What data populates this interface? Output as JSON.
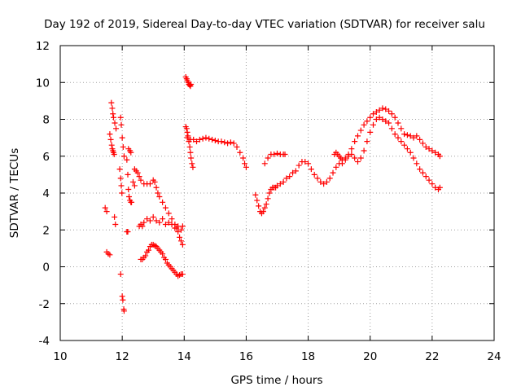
{
  "chart_data": {
    "type": "scatter",
    "title": "Day 192 of 2019, Sidereal Day-to-day VTEC variation (SDTVAR) for receiver salu",
    "xlabel": "GPS time / hours",
    "ylabel": "SDTVAR / TECUs",
    "xlim": [
      10,
      24
    ],
    "ylim": [
      -4,
      12
    ],
    "x_ticks": [
      10,
      12,
      14,
      16,
      18,
      20,
      22,
      24
    ],
    "y_ticks": [
      -4,
      -2,
      0,
      2,
      4,
      6,
      8,
      10,
      12
    ],
    "x_tick_labels": [
      "10",
      "12",
      "14",
      "16",
      "18",
      "20",
      "22",
      "24"
    ],
    "y_tick_labels": [
      "-4",
      "-2",
      "0",
      "2",
      "4",
      "6",
      "8",
      "10",
      "12"
    ],
    "grid": true,
    "marker": "+",
    "color": "#ff0000",
    "series": [
      {
        "name": "s1",
        "x": [
          11.45,
          11.5
        ],
        "y": [
          3.2,
          3.0
        ]
      },
      {
        "name": "s2",
        "x": [
          11.5,
          11.55,
          11.6
        ],
        "y": [
          0.8,
          0.7,
          0.65
        ]
      },
      {
        "name": "s3",
        "x": [
          11.6,
          11.63,
          11.66,
          11.68,
          11.7,
          11.72,
          11.74
        ],
        "y": [
          7.2,
          6.9,
          6.6,
          6.4,
          6.3,
          6.2,
          6.1
        ]
      },
      {
        "name": "s4",
        "x": [
          11.65,
          11.68,
          11.7,
          11.72,
          11.76,
          11.8
        ],
        "y": [
          8.9,
          8.6,
          8.3,
          8.1,
          7.8,
          7.5
        ]
      },
      {
        "name": "s5",
        "x": [
          11.75,
          11.78
        ],
        "y": [
          2.7,
          2.3
        ]
      },
      {
        "name": "s6",
        "x": [
          11.95,
          11.97,
          12.0,
          12.03,
          12.06
        ],
        "y": [
          8.1,
          7.7,
          7.0,
          6.5,
          6.0
        ]
      },
      {
        "name": "s7",
        "x": [
          11.92,
          11.95,
          11.97,
          11.99
        ],
        "y": [
          5.3,
          4.8,
          4.4,
          4.0
        ]
      },
      {
        "name": "s8",
        "x": [
          11.95,
          12.0,
          12.02,
          12.05,
          12.06
        ],
        "y": [
          -0.4,
          -1.6,
          -1.8,
          -2.3,
          -2.4
        ]
      },
      {
        "name": "s9",
        "x": [
          12.15,
          12.18
        ],
        "y": [
          1.9,
          1.9
        ]
      },
      {
        "name": "s10",
        "x": [
          12.2,
          12.25,
          12.28
        ],
        "y": [
          6.4,
          6.3,
          6.2
        ]
      },
      {
        "name": "s11",
        "x": [
          12.15,
          12.18,
          12.2,
          12.22,
          12.25,
          12.28,
          12.3
        ],
        "y": [
          5.8,
          5.0,
          4.2,
          3.8,
          3.6,
          3.5,
          3.5
        ]
      },
      {
        "name": "s12",
        "x": [
          12.4,
          12.45,
          12.5
        ],
        "y": [
          5.3,
          5.2,
          5.1
        ]
      },
      {
        "name": "s13",
        "x": [
          12.35,
          12.4
        ],
        "y": [
          4.6,
          4.4
        ]
      },
      {
        "name": "s14",
        "x": [
          12.55,
          12.6,
          12.7,
          12.8,
          12.9,
          13.0,
          13.05,
          13.1,
          13.15,
          13.2,
          13.3,
          13.4,
          13.5,
          13.6,
          13.7,
          13.75,
          13.8,
          13.85,
          13.9,
          13.95
        ],
        "y": [
          4.9,
          4.7,
          4.5,
          4.5,
          4.5,
          4.7,
          4.6,
          4.3,
          4.0,
          3.8,
          3.5,
          3.2,
          2.9,
          2.6,
          2.3,
          2.1,
          1.9,
          1.6,
          1.4,
          1.2
        ]
      },
      {
        "name": "s15",
        "x": [
          12.55,
          12.6,
          12.65,
          12.7,
          12.8,
          12.9,
          13.0,
          13.1,
          13.2,
          13.3,
          13.4,
          13.5,
          13.6,
          13.7,
          13.8,
          13.9,
          13.95
        ],
        "y": [
          2.2,
          2.3,
          2.2,
          2.4,
          2.6,
          2.5,
          2.7,
          2.5,
          2.4,
          2.6,
          2.3,
          2.4,
          2.3,
          2.1,
          2.2,
          2.0,
          2.2
        ]
      },
      {
        "name": "s16",
        "x": [
          12.6,
          12.65,
          12.7,
          12.75,
          12.8,
          12.85,
          12.9,
          12.95,
          13.0,
          13.05,
          13.1,
          13.15,
          13.2,
          13.25,
          13.3,
          13.35,
          13.4,
          13.45,
          13.5,
          13.55,
          13.6,
          13.65,
          13.7,
          13.75,
          13.8,
          13.85,
          13.9,
          13.95
        ],
        "y": [
          0.4,
          0.4,
          0.5,
          0.6,
          0.8,
          0.9,
          1.1,
          1.2,
          1.2,
          1.15,
          1.1,
          1.0,
          0.9,
          0.8,
          0.7,
          0.5,
          0.4,
          0.2,
          0.1,
          0.0,
          -0.1,
          -0.2,
          -0.3,
          -0.4,
          -0.5,
          -0.45,
          -0.4,
          -0.4
        ]
      },
      {
        "name": "s17",
        "x": [
          14.05,
          14.08,
          14.1,
          14.13,
          14.15,
          14.18,
          14.2,
          14.22
        ],
        "y": [
          10.3,
          10.2,
          10.1,
          10.0,
          9.9,
          9.85,
          9.8,
          9.9
        ]
      },
      {
        "name": "s18",
        "x": [
          14.05,
          14.08,
          14.1,
          14.12,
          14.15,
          14.18,
          14.2,
          14.22,
          14.25,
          14.28
        ],
        "y": [
          7.6,
          7.5,
          7.3,
          7.1,
          6.8,
          6.5,
          6.2,
          5.9,
          5.6,
          5.4
        ]
      },
      {
        "name": "s19",
        "x": [
          14.1,
          14.2,
          14.3,
          14.4,
          14.5,
          14.6,
          14.7,
          14.8,
          14.9,
          15.0,
          15.1,
          15.2,
          15.3,
          15.4,
          15.5,
          15.6,
          15.7,
          15.8,
          15.9,
          15.95,
          16.0
        ],
        "y": [
          7.0,
          6.9,
          6.9,
          6.8,
          6.9,
          6.95,
          7.0,
          6.95,
          6.9,
          6.85,
          6.8,
          6.8,
          6.75,
          6.7,
          6.75,
          6.7,
          6.5,
          6.2,
          5.9,
          5.6,
          5.4
        ]
      },
      {
        "name": "s20",
        "x": [
          16.3,
          16.35,
          16.4,
          16.45,
          16.5,
          16.55,
          16.6,
          16.65,
          16.7,
          16.75,
          16.8,
          16.85,
          16.9,
          16.95,
          17.0,
          17.1,
          17.2,
          17.3,
          17.4,
          17.5,
          17.6,
          17.7,
          17.8,
          17.9,
          18.0,
          18.1,
          18.2,
          18.3,
          18.4,
          18.5,
          18.6,
          18.7,
          18.8,
          18.9,
          19.0,
          19.1,
          19.2,
          19.3,
          19.4,
          19.5,
          19.6,
          19.7,
          19.8,
          19.9,
          20.0,
          20.1,
          20.2,
          20.3,
          20.4,
          20.5,
          20.6,
          20.7,
          20.8,
          20.9,
          21.0,
          21.1,
          21.2,
          21.3,
          21.4,
          21.5,
          21.6,
          21.7,
          21.8,
          21.9,
          22.0,
          22.1,
          22.2,
          22.25
        ],
        "y": [
          3.9,
          3.6,
          3.3,
          3.0,
          2.9,
          3.0,
          3.2,
          3.4,
          3.7,
          4.0,
          4.2,
          4.3,
          4.3,
          4.3,
          4.4,
          4.5,
          4.6,
          4.8,
          4.9,
          5.1,
          5.2,
          5.5,
          5.7,
          5.7,
          5.6,
          5.3,
          5.0,
          4.8,
          4.6,
          4.5,
          4.6,
          4.8,
          5.1,
          5.4,
          5.6,
          5.8,
          5.9,
          6.0,
          6.1,
          5.9,
          5.7,
          5.9,
          6.3,
          6.8,
          7.3,
          7.7,
          8.0,
          8.1,
          8.0,
          7.9,
          7.8,
          7.5,
          7.2,
          7.0,
          6.8,
          6.6,
          6.4,
          6.2,
          5.9,
          5.6,
          5.3,
          5.1,
          4.9,
          4.7,
          4.5,
          4.3,
          4.2,
          4.3
        ]
      },
      {
        "name": "s21",
        "x": [
          16.6,
          16.7,
          16.8,
          16.9,
          17.0,
          17.1,
          17.2,
          17.25
        ],
        "y": [
          5.6,
          5.9,
          6.1,
          6.1,
          6.15,
          6.1,
          6.1,
          6.1
        ]
      },
      {
        "name": "s22",
        "x": [
          18.85,
          18.9,
          18.95,
          19.0,
          19.05,
          19.1
        ],
        "y": [
          6.1,
          6.2,
          6.1,
          6.0,
          5.9,
          5.8
        ]
      },
      {
        "name": "s23",
        "x": [
          19.1,
          19.2,
          19.3,
          19.4,
          19.5,
          19.6,
          19.7,
          19.8,
          19.9,
          20.0,
          20.1,
          20.2,
          20.3,
          20.4,
          20.5,
          20.6,
          20.7,
          20.8,
          20.9,
          21.0,
          21.1,
          21.2,
          21.3,
          21.4,
          21.5,
          21.6,
          21.7,
          21.8,
          21.9,
          22.0,
          22.1,
          22.2,
          22.25
        ],
        "y": [
          5.6,
          5.8,
          6.1,
          6.4,
          6.8,
          7.1,
          7.4,
          7.7,
          7.9,
          8.1,
          8.3,
          8.4,
          8.5,
          8.6,
          8.55,
          8.45,
          8.3,
          8.1,
          7.8,
          7.5,
          7.2,
          7.15,
          7.1,
          7.0,
          7.1,
          6.9,
          6.7,
          6.5,
          6.4,
          6.3,
          6.2,
          6.1,
          6.0
        ]
      }
    ]
  }
}
